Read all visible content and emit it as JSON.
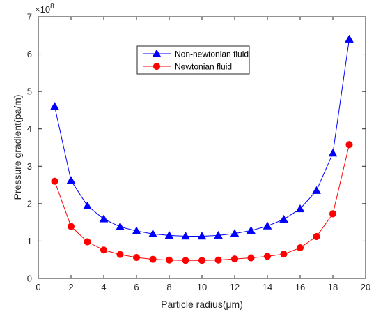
{
  "chart_data": {
    "type": "line",
    "title": "",
    "xlabel": "Particle radius(μm)",
    "ylabel": "Pressure gradient(pa/m)",
    "y_multiplier_base": "×10",
    "y_multiplier_exp": "8",
    "xlim": [
      0,
      20
    ],
    "ylim": [
      0,
      7
    ],
    "xticks": [
      0,
      2,
      4,
      6,
      8,
      10,
      12,
      14,
      16,
      18,
      20
    ],
    "yticks": [
      0,
      1,
      2,
      3,
      4,
      5,
      6,
      7
    ],
    "grid": false,
    "legend_position": "top-center",
    "x": [
      1,
      2,
      3,
      4,
      5,
      6,
      7,
      8,
      9,
      10,
      11,
      12,
      13,
      14,
      15,
      16,
      17,
      18,
      19
    ],
    "series": [
      {
        "name": "Non-newtonian fluid",
        "color": "#0000ff",
        "marker": "triangle",
        "values": [
          4.6,
          2.62,
          1.94,
          1.59,
          1.38,
          1.27,
          1.19,
          1.15,
          1.13,
          1.13,
          1.15,
          1.2,
          1.28,
          1.4,
          1.58,
          1.86,
          2.35,
          3.35,
          6.4
        ]
      },
      {
        "name": "Newtonian fluid",
        "color": "#ff0000",
        "marker": "circle",
        "values": [
          2.6,
          1.39,
          0.98,
          0.76,
          0.64,
          0.56,
          0.51,
          0.49,
          0.48,
          0.48,
          0.49,
          0.52,
          0.55,
          0.59,
          0.65,
          0.82,
          1.12,
          1.73,
          3.58
        ]
      }
    ]
  }
}
